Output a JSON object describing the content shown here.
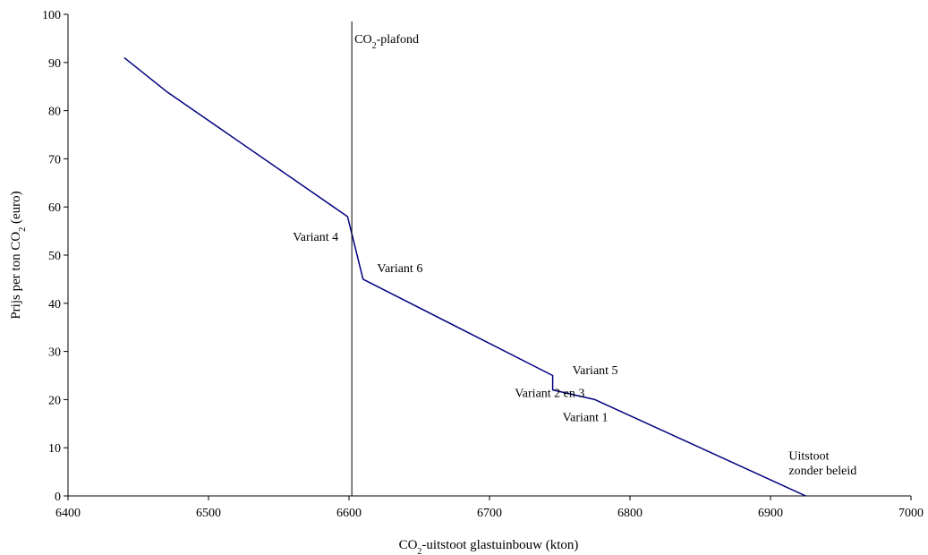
{
  "chart_data": {
    "type": "line",
    "xlabel": {
      "pre": "CO",
      "sub": "2",
      "post": "-uitstoot glastuinbouw (kton)"
    },
    "ylabel": {
      "pre": "Prijs per ton CO",
      "sub": "2",
      "post": " (euro)"
    },
    "xlim": [
      6400,
      7000
    ],
    "ylim": [
      0,
      100
    ],
    "x_ticks": [
      6400,
      6500,
      6600,
      6700,
      6800,
      6900,
      7000
    ],
    "y_ticks": [
      0,
      10,
      20,
      30,
      40,
      50,
      60,
      70,
      80,
      90,
      100
    ],
    "grid": false,
    "series": [
      {
        "color": "#000080",
        "points": [
          [
            6440,
            91
          ],
          [
            6470,
            84
          ],
          [
            6599,
            58
          ],
          [
            6610,
            45
          ],
          [
            6745,
            25
          ],
          [
            6745,
            22
          ],
          [
            6775,
            20
          ],
          [
            6925,
            0
          ]
        ]
      }
    ],
    "reference_line": {
      "x": 6602,
      "label": {
        "pre": "CO",
        "sub": "2",
        "post": "-plafond"
      },
      "color": "#000000"
    },
    "annotations": [
      {
        "text": "Variant 4",
        "x": 6560,
        "y": 53
      },
      {
        "text": "Variant 6",
        "x": 6620,
        "y": 46.5
      },
      {
        "text": "Variant 5",
        "x": 6759,
        "y": 25.3
      },
      {
        "text": "Variant 2 en 3",
        "x": 6718,
        "y": 20.5
      },
      {
        "text": "Variant 1",
        "x": 6752,
        "y": 15.5
      },
      {
        "text": "Uitstoot",
        "x": 6913,
        "y": 7.5
      },
      {
        "text": "zonder beleid",
        "x": 6913,
        "y": 4.5
      }
    ]
  }
}
